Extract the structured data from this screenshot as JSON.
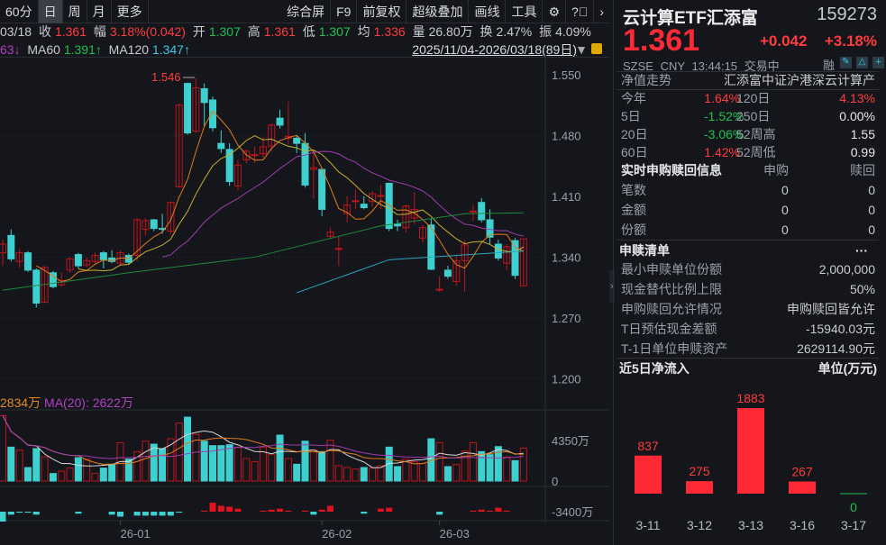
{
  "toolbar": {
    "items": [
      "60分",
      "日",
      "周",
      "月",
      "更多"
    ],
    "active": "日",
    "right_items": [
      "综合屏",
      "F9",
      "前复权",
      "超级叠加",
      "画线",
      "工具"
    ],
    "icons": [
      "gear-icon",
      "help-icon",
      "chevron-right-icon"
    ]
  },
  "info": {
    "date": "03/18",
    "close_label": "收",
    "close": "1.361",
    "range_label": "幅",
    "range": "3.18%(0.042)",
    "open_label": "开",
    "open": "1.307",
    "high_label": "高",
    "high": "1.361",
    "low_label": "低",
    "low": "1.307",
    "avg_label": "均",
    "avg": "1.336",
    "vol_label": "量",
    "vol": "26.80万",
    "turn_label": "换",
    "turn": "2.47%",
    "amp_label": "振",
    "amp": "4.09%"
  },
  "ma": {
    "ma20_tail": "63↓",
    "ma60_label": "MA60",
    "ma60": "1.391↑",
    "ma120_label": "MA120",
    "ma120": "1.347↑",
    "date_range": "2025/11/04-2026/03/18(89日)"
  },
  "colors": {
    "up": "#c0141c",
    "down": "#3ecfcf",
    "ma5": "#e07c1a",
    "ma10": "#c8b030",
    "ma20": "#a03cb0",
    "ma60": "#1d8a3a",
    "ma120": "#2aa8c0",
    "red": "#ff3b3b",
    "green": "#20c050"
  },
  "price_axis": [
    "1.550",
    "1.480",
    "1.410",
    "1.340",
    "1.270",
    "1.200"
  ],
  "price_axis_values": [
    1.55,
    1.48,
    1.41,
    1.34,
    1.27,
    1.2
  ],
  "high_marker": "1.546",
  "candles": [
    [
      1.345,
      1.36,
      1.33,
      1.355
    ],
    [
      1.365,
      1.372,
      1.335,
      1.338
    ],
    [
      1.335,
      1.35,
      1.328,
      1.345
    ],
    [
      1.345,
      1.347,
      1.323,
      1.325
    ],
    [
      1.325,
      1.327,
      1.282,
      1.287
    ],
    [
      1.288,
      1.33,
      1.287,
      1.328
    ],
    [
      1.322,
      1.324,
      1.304,
      1.306
    ],
    [
      1.308,
      1.322,
      1.306,
      1.313
    ],
    [
      1.325,
      1.34,
      1.322,
      1.338
    ],
    [
      1.343,
      1.345,
      1.327,
      1.33
    ],
    [
      1.331,
      1.34,
      1.328,
      1.336
    ],
    [
      1.335,
      1.346,
      1.332,
      1.342
    ],
    [
      1.345,
      1.347,
      1.327,
      1.337
    ],
    [
      1.339,
      1.348,
      1.333,
      1.335
    ],
    [
      1.333,
      1.348,
      1.33,
      1.345
    ],
    [
      1.342,
      1.344,
      1.332,
      1.334
    ],
    [
      1.342,
      1.385,
      1.336,
      1.383
    ],
    [
      1.372,
      1.385,
      1.365,
      1.382
    ],
    [
      1.383,
      1.384,
      1.37,
      1.373
    ],
    [
      1.373,
      1.39,
      1.367,
      1.372
    ],
    [
      1.37,
      1.404,
      1.366,
      1.403
    ],
    [
      1.421,
      1.517,
      1.42,
      1.515
    ],
    [
      1.54,
      1.541,
      1.481,
      1.483
    ],
    [
      1.485,
      1.546,
      1.483,
      1.535
    ],
    [
      1.534,
      1.54,
      1.49,
      1.518
    ],
    [
      1.521,
      1.525,
      1.485,
      1.489
    ],
    [
      1.471,
      1.486,
      1.46,
      1.465
    ],
    [
      1.464,
      1.471,
      1.422,
      1.427
    ],
    [
      1.422,
      1.452,
      1.417,
      1.446
    ],
    [
      1.452,
      1.464,
      1.448,
      1.462
    ],
    [
      1.458,
      1.467,
      1.448,
      1.458
    ],
    [
      1.459,
      1.478,
      1.454,
      1.467
    ],
    [
      1.468,
      1.494,
      1.462,
      1.492
    ],
    [
      1.5,
      1.51,
      1.488,
      1.492
    ],
    [
      1.477,
      1.519,
      1.47,
      1.479
    ],
    [
      1.477,
      1.48,
      1.46,
      1.471
    ],
    [
      1.471,
      1.483,
      1.42,
      1.423
    ],
    [
      1.441,
      1.46,
      1.407,
      1.443
    ],
    [
      1.441,
      1.443,
      1.387,
      1.395
    ],
    [
      1.364,
      1.374,
      1.362,
      1.369
    ],
    [
      1.35,
      1.364,
      1.33,
      1.35
    ],
    [
      1.39,
      1.41,
      1.38,
      1.4
    ],
    [
      1.404,
      1.418,
      1.395,
      1.405
    ],
    [
      1.401,
      1.41,
      1.395,
      1.397
    ],
    [
      1.404,
      1.416,
      1.398,
      1.413
    ],
    [
      1.411,
      1.423,
      1.395,
      1.411
    ],
    [
      1.425,
      1.426,
      1.37,
      1.373
    ],
    [
      1.378,
      1.383,
      1.37,
      1.376
    ],
    [
      1.374,
      1.4,
      1.368,
      1.399
    ],
    [
      1.385,
      1.415,
      1.378,
      1.395
    ],
    [
      1.362,
      1.377,
      1.357,
      1.374
    ],
    [
      1.377,
      1.385,
      1.325,
      1.326
    ],
    [
      1.303,
      1.318,
      1.3,
      1.303
    ],
    [
      1.325,
      1.33,
      1.315,
      1.318
    ],
    [
      1.312,
      1.342,
      1.307,
      1.336
    ],
    [
      1.336,
      1.36,
      1.3,
      1.354
    ],
    [
      1.392,
      1.4,
      1.382,
      1.393
    ],
    [
      1.403,
      1.408,
      1.38,
      1.383
    ],
    [
      1.383,
      1.395,
      1.355,
      1.363
    ],
    [
      1.355,
      1.36,
      1.336,
      1.339
    ],
    [
      1.333,
      1.355,
      1.325,
      1.352
    ],
    [
      1.359,
      1.362,
      1.315,
      1.319
    ],
    [
      1.307,
      1.361,
      1.307,
      1.361
    ]
  ],
  "ma60_line": [
    [
      0,
      1.302
    ],
    [
      15,
      1.322
    ],
    [
      30,
      1.34
    ],
    [
      45,
      1.376
    ],
    [
      55,
      1.39
    ],
    [
      62,
      1.391
    ]
  ],
  "ma120_line": [
    [
      35,
      1.299
    ],
    [
      46,
      1.337
    ],
    [
      62,
      1.347
    ]
  ],
  "volume": {
    "header_tail": "2834万",
    "ma20_label": "MA(20): 2622万",
    "axis": [
      "4350万",
      "0"
    ],
    "axis_values": [
      4350,
      0
    ],
    "values": [
      7020,
      3640,
      3320,
      1450,
      3480,
      2610,
      805,
      1060,
      1390,
      2510,
      2350,
      840,
      1390,
      1770,
      4120,
      2350,
      3160,
      4280,
      3960,
      3480,
      4540,
      6220,
      6860,
      5020,
      4280,
      3800,
      3800,
      3900,
      3640,
      2420,
      2090,
      3640,
      2830,
      4930,
      2420,
      1800,
      4280,
      3320,
      3160,
      4380,
      1640,
      1450,
      1290,
      1450,
      1390,
      1640,
      3640,
      1550,
      2340,
      2090,
      1870,
      4540,
      4120,
      1550,
      1770,
      3220,
      4120,
      3160,
      2830,
      3700,
      2580,
      2190,
      3540
    ]
  },
  "indicator": {
    "axis": "-3400万",
    "bars": [
      -10,
      -3,
      -1,
      -1,
      -3,
      0,
      0,
      0,
      0,
      -2,
      0,
      0,
      0,
      -3,
      -5,
      0,
      -4,
      -4,
      -4,
      -4,
      -4,
      -1,
      0,
      0,
      1,
      9,
      6,
      5,
      3,
      0,
      0,
      1,
      2,
      3,
      1,
      0,
      1,
      -3,
      2,
      6,
      0,
      0,
      0,
      -2,
      0,
      3,
      4,
      0,
      0,
      0,
      0,
      0,
      -3,
      0,
      0,
      0,
      1,
      2,
      1,
      4,
      1,
      0,
      0
    ]
  },
  "date_axis": [
    {
      "label": "26-01",
      "index": 14
    },
    {
      "label": "26-02",
      "index": 38
    },
    {
      "label": "26-03",
      "index": 52
    }
  ],
  "quote": {
    "name": "云计算ETF汇添富",
    "code": "159273",
    "price": "1.361",
    "change": "+0.042",
    "pct": "+3.18%",
    "exchange": "SZSE",
    "currency": "CNY",
    "time": "13:44:15",
    "status": "交易中",
    "margin": "融"
  },
  "nav": {
    "title": "净值走势",
    "index_name": "汇添富中证沪港深云计算产",
    "rows": [
      {
        "l1": "今年",
        "v1": "1.64%",
        "c1": "red",
        "l2": "120日",
        "v2": "4.13%",
        "c2": "red"
      },
      {
        "l1": "5日",
        "v1": "-1.52%",
        "c1": "green",
        "l2": "250日",
        "v2": "0.00%",
        "c2": "white"
      },
      {
        "l1": "20日",
        "v1": "-3.06%",
        "c1": "green",
        "l2": "52周高",
        "v2": "1.55",
        "c2": "white"
      },
      {
        "l1": "60日",
        "v1": "1.42%",
        "c1": "red",
        "l2": "52周低",
        "v2": "0.99",
        "c2": "white"
      }
    ]
  },
  "realtime": {
    "title": "实时申购赎回信息",
    "col1": "申购",
    "col2": "赎回",
    "rows": [
      {
        "label": "笔数",
        "v1": "0",
        "v2": "0"
      },
      {
        "label": "金额",
        "v1": "0",
        "v2": "0"
      },
      {
        "label": "份额",
        "v1": "0",
        "v2": "0"
      }
    ]
  },
  "pcf": {
    "title": "申赎清单",
    "more": "···",
    "rows": [
      {
        "label": "最小申赎单位份额",
        "value": "2,000,000"
      },
      {
        "label": "现金替代比例上限",
        "value": "50%"
      },
      {
        "label": "申购赎回允许情况",
        "value": "申购赎回皆允许"
      },
      {
        "label": "T日预估现金差额",
        "value": "-15940.03元"
      },
      {
        "label": "T-1日单位申赎资产",
        "value": "2629114.90元"
      }
    ]
  },
  "flow": {
    "title": "近5日净流入",
    "unit": "单位(万元)",
    "chart_data": {
      "type": "bar",
      "categories": [
        "3-11",
        "3-12",
        "3-13",
        "3-16",
        "3-17"
      ],
      "values": [
        837,
        275,
        1883,
        267,
        0
      ]
    }
  }
}
